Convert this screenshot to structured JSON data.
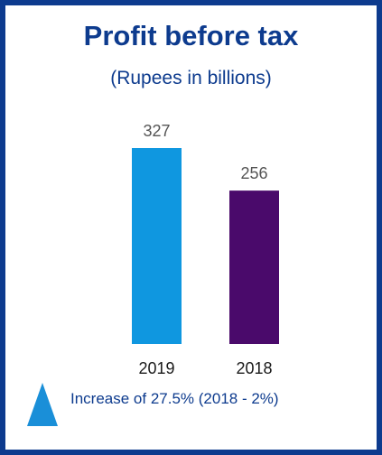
{
  "title": "Profit before tax",
  "subtitle": "(Rupees in billions)",
  "note": "Increase of 27.5% (2018 - 2%)",
  "indicator_icon": "triangle-up-icon",
  "colors": {
    "border": "#0d3b8e",
    "text": "#0d3b8e",
    "indicator": "#1a8fd8"
  },
  "chart_data": {
    "type": "bar",
    "title": "Profit before tax",
    "subtitle": "(Rupees in billions)",
    "categories": [
      "2019",
      "2018"
    ],
    "values": [
      327,
      256
    ],
    "value_labels": [
      "327",
      "256"
    ],
    "colors": [
      "#0f97e0",
      "#4a0a6b"
    ],
    "xlabel": "",
    "ylabel": "",
    "ylim": [
      0,
      327
    ],
    "grid": false,
    "legend": "none"
  }
}
